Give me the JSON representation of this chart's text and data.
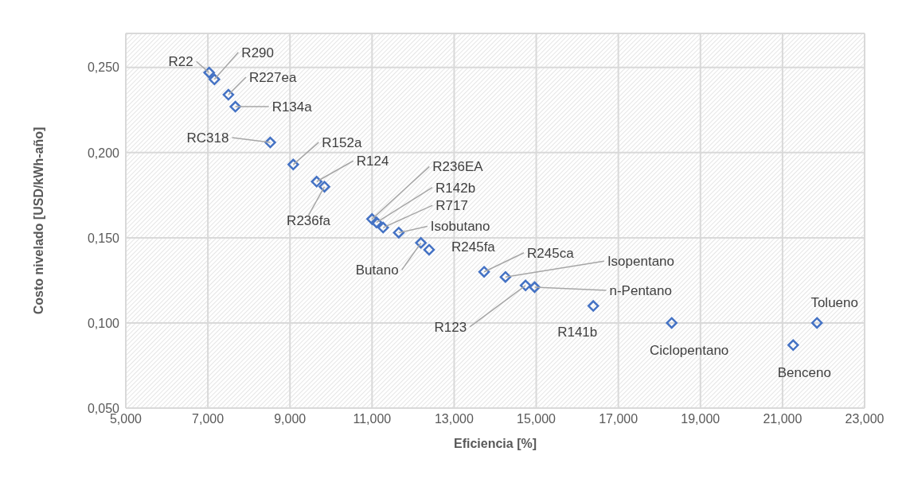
{
  "chart_data": {
    "type": "scatter",
    "xlabel": "Eficiencia [%]",
    "ylabel": "Costo nivelado [USD/kWh-año]",
    "x": [
      7.03,
      7.16,
      7.5,
      7.67,
      8.52,
      9.08,
      9.65,
      9.84,
      11.0,
      11.11,
      11.27,
      11.65,
      12.19,
      12.39,
      13.73,
      14.25,
      14.74,
      14.96,
      16.39,
      18.3,
      21.26,
      21.84
    ],
    "series": [
      {
        "color": "#4472c4",
        "values": [
          0.247,
          0.243,
          0.234,
          0.227,
          0.206,
          0.193,
          0.183,
          0.18,
          0.161,
          0.159,
          0.156,
          0.153,
          0.147,
          0.143,
          0.13,
          0.127,
          0.122,
          0.121,
          0.11,
          0.1,
          0.087,
          0.1
        ]
      }
    ],
    "xlim": [
      5,
      23
    ],
    "ylim": [
      0.05,
      0.27
    ],
    "xticks": [
      {
        "value": 5,
        "label": "5,000"
      },
      {
        "value": 7,
        "label": "7,000"
      },
      {
        "value": 9,
        "label": "9,000"
      },
      {
        "value": 11,
        "label": "11,000"
      },
      {
        "value": 13,
        "label": "13,000"
      },
      {
        "value": 15,
        "label": "15,000"
      },
      {
        "value": 17,
        "label": "17,000"
      },
      {
        "value": 19,
        "label": "19,000"
      },
      {
        "value": 21,
        "label": "21,000"
      },
      {
        "value": 23,
        "label": "23,000"
      }
    ],
    "yticks": [
      {
        "value": 0.05,
        "label": "0,050"
      },
      {
        "value": 0.1,
        "label": "0,100"
      },
      {
        "value": 0.15,
        "label": "0,150"
      },
      {
        "value": 0.2,
        "label": "0,200"
      },
      {
        "value": 0.25,
        "label": "0,250"
      }
    ],
    "grid": true,
    "legend": false,
    "marker": "diamond",
    "annotations": [
      {
        "text": "R22",
        "x": 7.03,
        "y": 0.247
      },
      {
        "text": "R290",
        "x": 7.16,
        "y": 0.243
      },
      {
        "text": "R227ea",
        "x": 7.5,
        "y": 0.234
      },
      {
        "text": "R134a",
        "x": 7.67,
        "y": 0.227
      },
      {
        "text": "RC318",
        "x": 8.52,
        "y": 0.206
      },
      {
        "text": "R152a",
        "x": 9.08,
        "y": 0.193
      },
      {
        "text": "R124",
        "x": 9.65,
        "y": 0.183
      },
      {
        "text": "R236fa",
        "x": 9.84,
        "y": 0.18
      },
      {
        "text": "R236EA",
        "x": 11.0,
        "y": 0.161
      },
      {
        "text": "R142b",
        "x": 11.11,
        "y": 0.159
      },
      {
        "text": "R717",
        "x": 11.27,
        "y": 0.156
      },
      {
        "text": "Isobutano",
        "x": 11.65,
        "y": 0.153
      },
      {
        "text": "Butano",
        "x": 12.19,
        "y": 0.147
      },
      {
        "text": "R245fa",
        "x": 12.39,
        "y": 0.143
      },
      {
        "text": "R245ca",
        "x": 13.73,
        "y": 0.13
      },
      {
        "text": "Isopentano",
        "x": 14.25,
        "y": 0.127
      },
      {
        "text": "R123",
        "x": 14.74,
        "y": 0.122
      },
      {
        "text": "n-Pentano",
        "x": 14.96,
        "y": 0.121
      },
      {
        "text": "R141b",
        "x": 16.39,
        "y": 0.11
      },
      {
        "text": "Ciclopentano",
        "x": 18.3,
        "y": 0.1
      },
      {
        "text": "Benceno",
        "x": 21.26,
        "y": 0.087
      },
      {
        "text": "Tolueno",
        "x": 21.84,
        "y": 0.1
      }
    ]
  }
}
